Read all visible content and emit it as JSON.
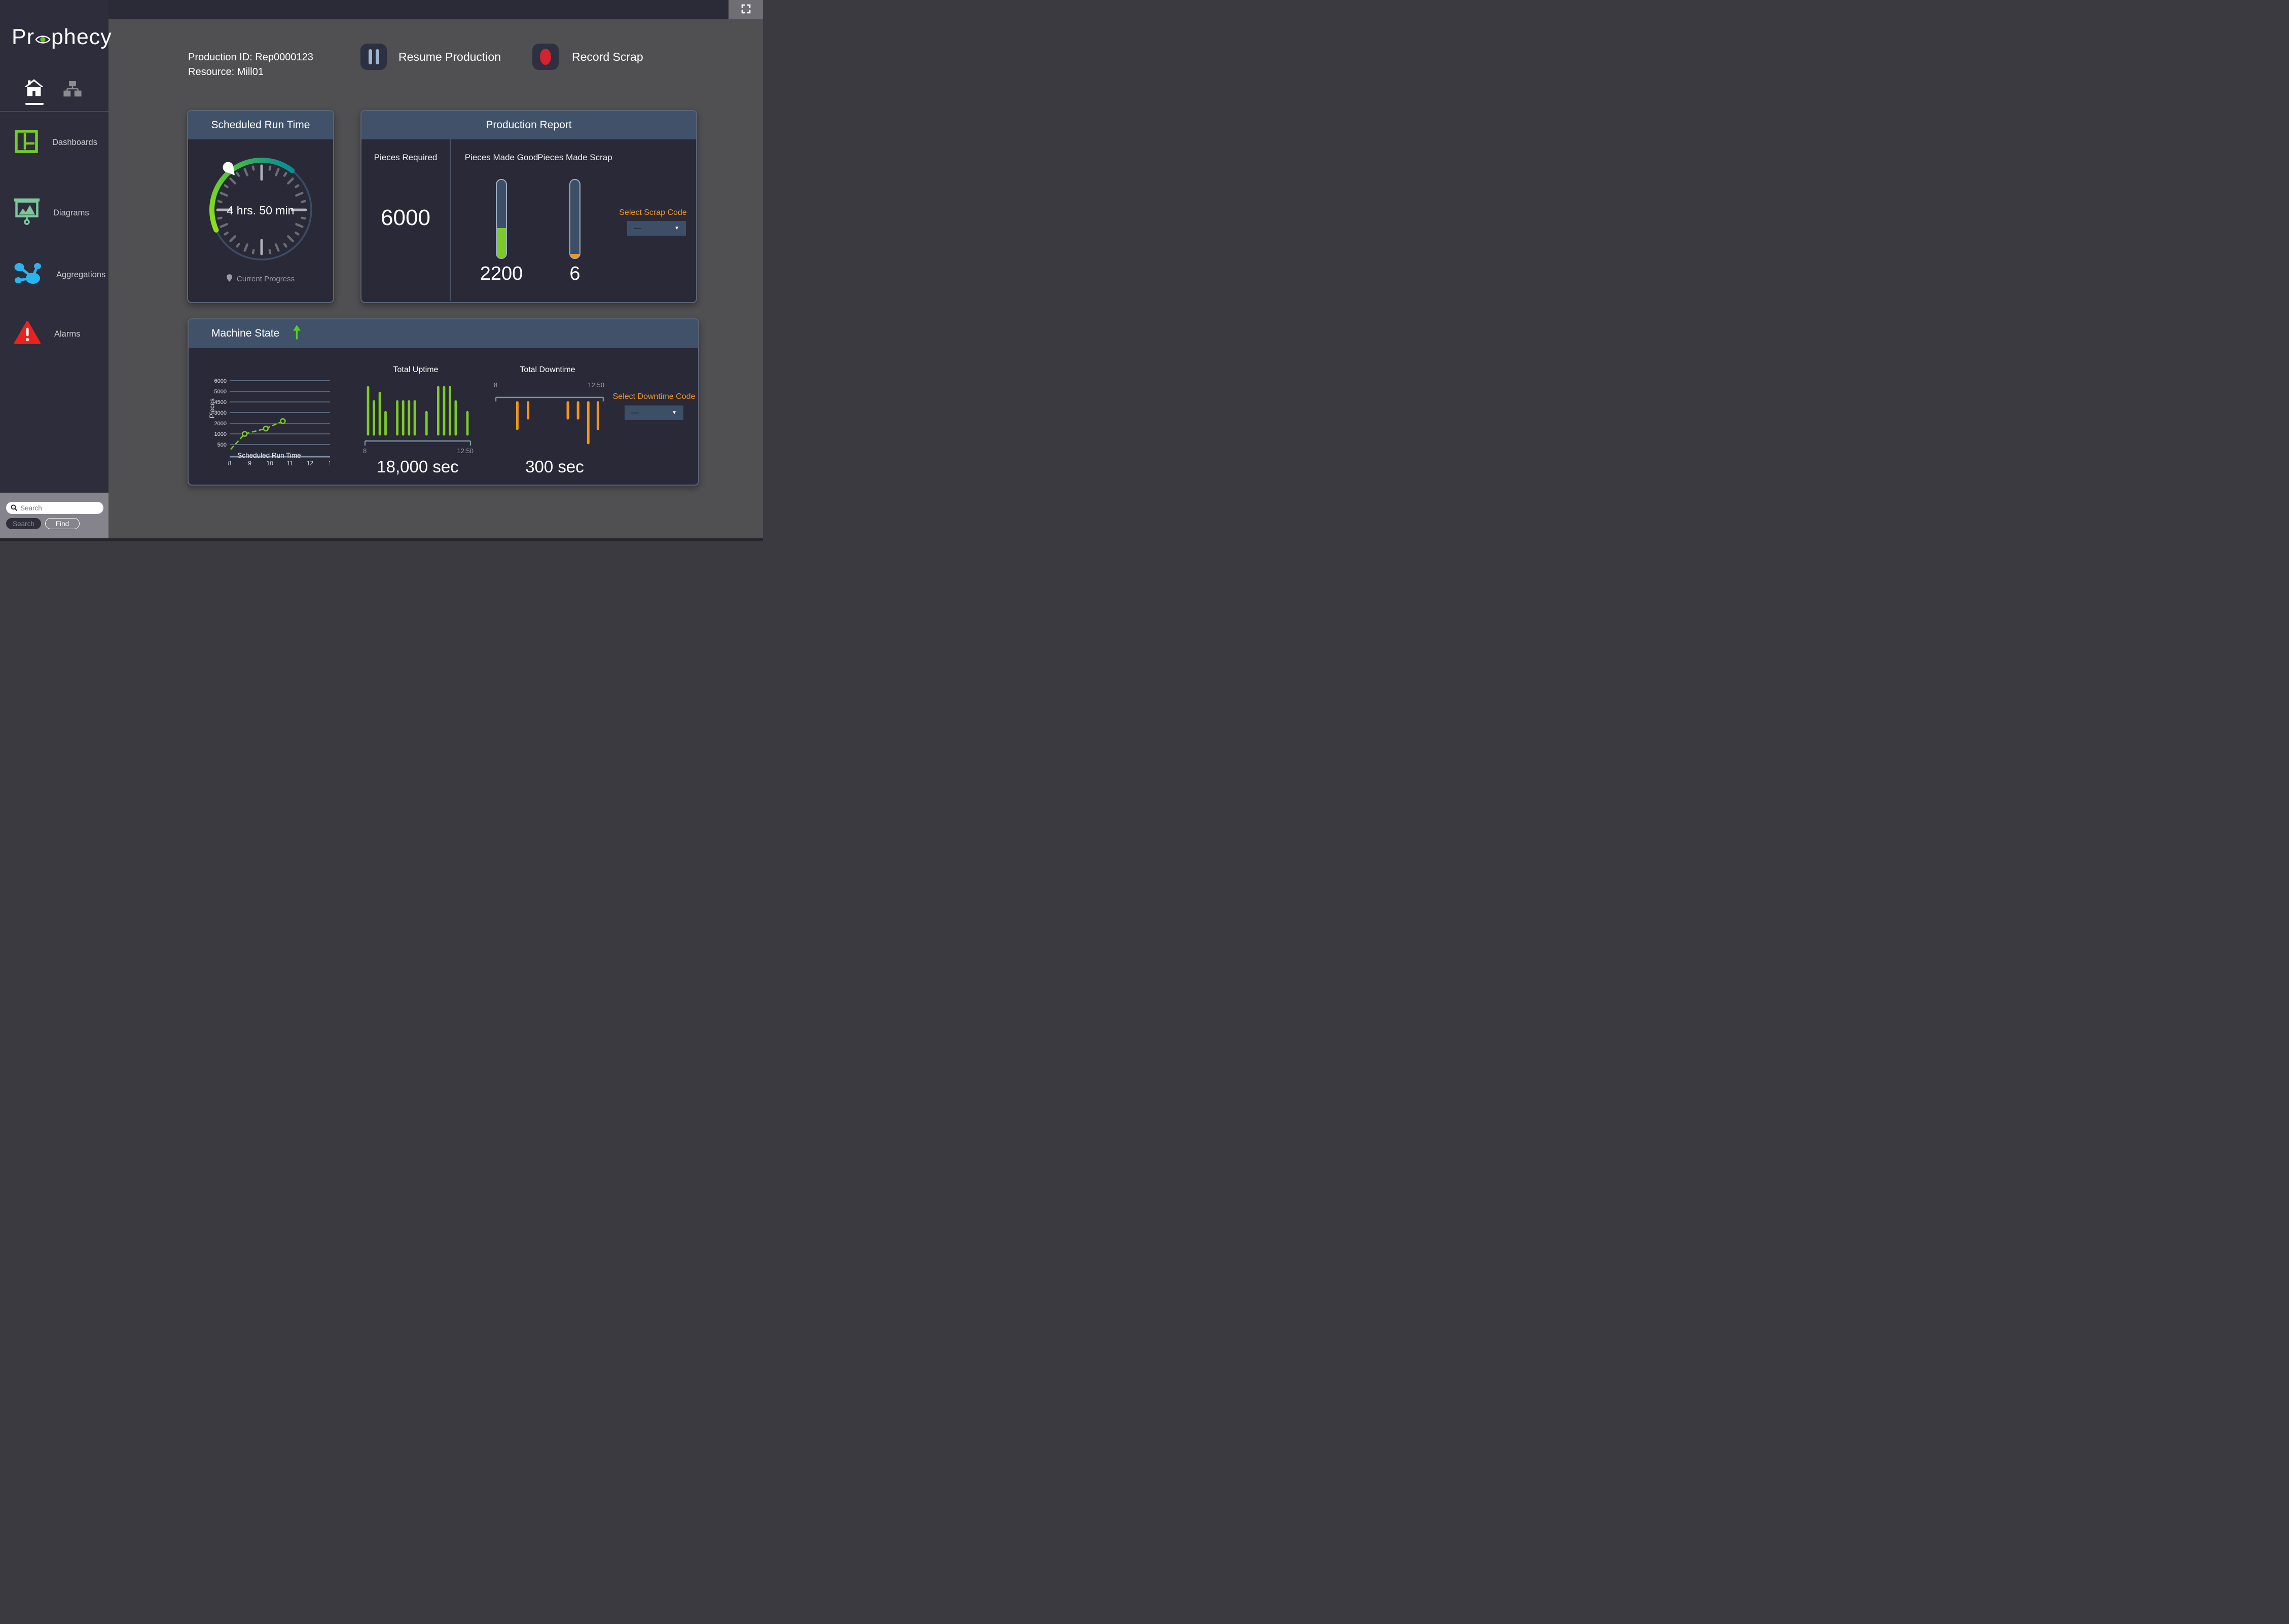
{
  "app": {
    "logo_left": "Pr",
    "logo_right": "phecy"
  },
  "page_header": {
    "production_id": "Production ID: Rep0000123",
    "resource": "Resource: Mill01",
    "resume_label": "Resume Production",
    "record_label": "Record Scrap"
  },
  "sidebar": {
    "items": [
      {
        "label": "Dashboards"
      },
      {
        "label": "Diagrams"
      },
      {
        "label": "Aggregations"
      },
      {
        "label": "Alarms"
      }
    ],
    "search": {
      "placeholder": "Search",
      "search_button": "Search",
      "find_button": "Find"
    }
  },
  "scheduled_card": {
    "title": "Scheduled Run Time",
    "value": "4 hrs. 50 min",
    "legend": "Current Progress"
  },
  "production_card": {
    "title": "Production Report",
    "required": {
      "label": "Pieces Required",
      "value": "6000"
    },
    "good": {
      "label": "Pieces Made Good",
      "value": "2200",
      "fill_pct": 38
    },
    "scrap": {
      "label": "Pieces Made Scrap",
      "value": "6",
      "fill_pct": 5
    },
    "scrap_code": {
      "label": "Select Scrap Code",
      "value": "—"
    }
  },
  "machine_card": {
    "title": "Machine State",
    "downtime_code": {
      "label": "Select Downtime Code",
      "value": "—"
    }
  },
  "icons": {
    "dropdown_arrow": "▼"
  },
  "chart_data": [
    {
      "type": "gauge",
      "title": "Scheduled Run Time",
      "arc_start_deg": 246,
      "arc_end_deg": 398
    },
    {
      "type": "line",
      "title": "Scheduled Run Time",
      "ylabel": "Pieces",
      "xlabel_title": "Scheduled Run Time",
      "x_ticks": [
        "8",
        "9",
        "10",
        "11",
        "12",
        "1"
      ],
      "y_ticks": [
        6000,
        5000,
        4500,
        3000,
        2000,
        1000,
        500
      ],
      "points": [
        {
          "x": 8.05,
          "y": 300,
          "marker": false
        },
        {
          "x": 8.75,
          "y": 1000,
          "marker": true
        },
        {
          "x": 9.8,
          "y": 1500,
          "marker": true
        },
        {
          "x": 10.65,
          "y": 2200,
          "marker": true
        }
      ]
    },
    {
      "type": "bar",
      "title": "Total Uptime",
      "range_start": "8",
      "range_end": "12:50",
      "total_label": "18,000 sec",
      "bars": [
        {
          "pos": 0.0,
          "h": 1.0
        },
        {
          "pos": 0.059,
          "h": 0.7
        },
        {
          "pos": 0.118,
          "h": 0.88
        },
        {
          "pos": 0.176,
          "h": 0.47
        },
        {
          "pos": 0.294,
          "h": 0.7
        },
        {
          "pos": 0.353,
          "h": 0.7
        },
        {
          "pos": 0.412,
          "h": 0.7
        },
        {
          "pos": 0.47,
          "h": 0.7
        },
        {
          "pos": 0.588,
          "h": 0.47
        },
        {
          "pos": 0.706,
          "h": 1.0
        },
        {
          "pos": 0.765,
          "h": 1.0
        },
        {
          "pos": 0.824,
          "h": 1.0
        },
        {
          "pos": 0.882,
          "h": 0.7
        },
        {
          "pos": 1.0,
          "h": 0.47
        }
      ]
    },
    {
      "type": "bar",
      "title": "Total Downtime",
      "range_start": "8",
      "range_end": "12:50",
      "total_label": "300 sec",
      "bars": [
        {
          "pos": 0.2,
          "h": 0.65
        },
        {
          "pos": 0.3,
          "h": 0.39
        },
        {
          "pos": 0.67,
          "h": 0.39
        },
        {
          "pos": 0.765,
          "h": 0.39
        },
        {
          "pos": 0.86,
          "h": 1.0
        },
        {
          "pos": 0.95,
          "h": 0.65
        }
      ]
    }
  ],
  "colors": {
    "green": "#7ccb28",
    "gauge_green": "#8ee01e",
    "gauge_teal": "#0d8d93",
    "orange": "#f0961e",
    "header_blue": "#405269",
    "steel": "#3d4f66",
    "grid": "#57657b",
    "axis": "#8091a6",
    "alarm_red": "#e8231e",
    "record_red": "#d2232e",
    "aggregation_blue": "#29b5f0",
    "diagram_mint": "#7cc79c",
    "dashboard_green": "#76cc26"
  }
}
